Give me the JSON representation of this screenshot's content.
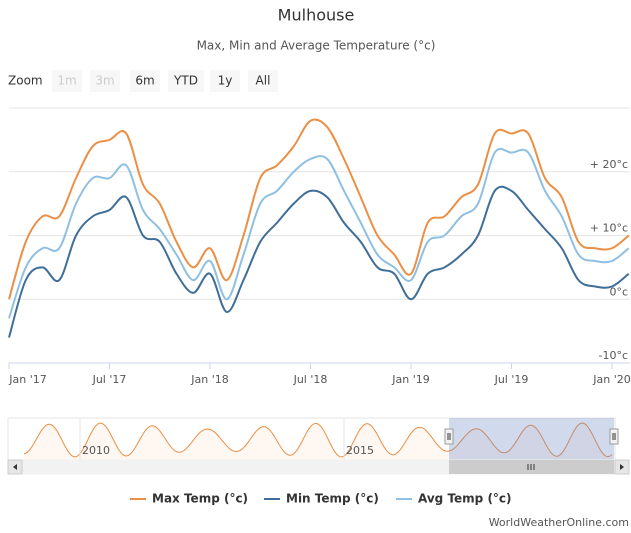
{
  "chart_data": {
    "type": "line",
    "title": "Mulhouse",
    "subtitle": "Max, Min and Average Temperature (°c)",
    "range_selector": {
      "label": "Zoom",
      "buttons": [
        "1m",
        "3m",
        "6m",
        "YTD",
        "1y",
        "All"
      ],
      "disabled": [
        "1m",
        "3m"
      ]
    },
    "x": [
      "2017-01",
      "2017-02",
      "2017-03",
      "2017-04",
      "2017-05",
      "2017-06",
      "2017-07",
      "2017-08",
      "2017-09",
      "2017-10",
      "2017-11",
      "2017-12",
      "2018-01",
      "2018-02",
      "2018-03",
      "2018-04",
      "2018-05",
      "2018-06",
      "2018-07",
      "2018-08",
      "2018-09",
      "2018-10",
      "2018-11",
      "2018-12",
      "2019-01",
      "2019-02",
      "2019-03",
      "2019-04",
      "2019-05",
      "2019-06",
      "2019-07",
      "2019-08",
      "2019-09",
      "2019-10",
      "2019-11",
      "2019-12",
      "2020-01",
      "2020-02"
    ],
    "xticks": [
      {
        "value": "2017-01",
        "label": "Jan '17"
      },
      {
        "value": "2017-07",
        "label": "Jul '17"
      },
      {
        "value": "2018-01",
        "label": "Jan '18"
      },
      {
        "value": "2018-07",
        "label": "Jul '18"
      },
      {
        "value": "2019-01",
        "label": "Jan '19"
      },
      {
        "value": "2019-07",
        "label": "Jul '19"
      },
      {
        "value": "2020-01",
        "label": "Jan '20"
      }
    ],
    "ylim": [
      -10,
      30
    ],
    "yticks": [
      {
        "value": -10,
        "label": "-10°c"
      },
      {
        "value": 0,
        "label": "0°c"
      },
      {
        "value": 10,
        "label": "+ 10°c"
      },
      {
        "value": 20,
        "label": "+ 20°c"
      }
    ],
    "grid": true,
    "legend": "bottom",
    "series": [
      {
        "name": "Max Temp (°c)",
        "color": "#eb8f45",
        "values": [
          0,
          9,
          13,
          13,
          19,
          24,
          25,
          26,
          18,
          15,
          9,
          5,
          8,
          3,
          10,
          19,
          21,
          24,
          28,
          27,
          22,
          16,
          10,
          7,
          4,
          12,
          13,
          16,
          18,
          26,
          26,
          26,
          19,
          16,
          9,
          8,
          8,
          10
        ]
      },
      {
        "name": "Min Temp (°c)",
        "color": "#3f6e98",
        "values": [
          -6,
          3,
          5,
          3,
          10,
          13,
          14,
          16,
          10,
          9,
          4,
          1,
          4,
          -2,
          3,
          9,
          12,
          15,
          17,
          16,
          12,
          9,
          5,
          4,
          0,
          4,
          5,
          7,
          10,
          17,
          17,
          14,
          11,
          8,
          3,
          2,
          2,
          4
        ]
      },
      {
        "name": "Avg Temp (°c)",
        "color": "#8fc0e2",
        "values": [
          -3,
          5,
          8,
          8,
          15,
          19,
          19,
          21,
          14,
          11,
          7,
          3,
          6,
          0,
          7,
          15,
          17,
          20,
          22,
          22,
          17,
          12,
          7,
          5,
          3,
          9,
          10,
          13,
          15,
          23,
          23,
          23,
          17,
          13,
          7,
          6,
          6,
          8
        ]
      }
    ],
    "navigator": {
      "labels": [
        "2010",
        "2015"
      ]
    },
    "credits": "WorldWeatherOnline.com"
  }
}
